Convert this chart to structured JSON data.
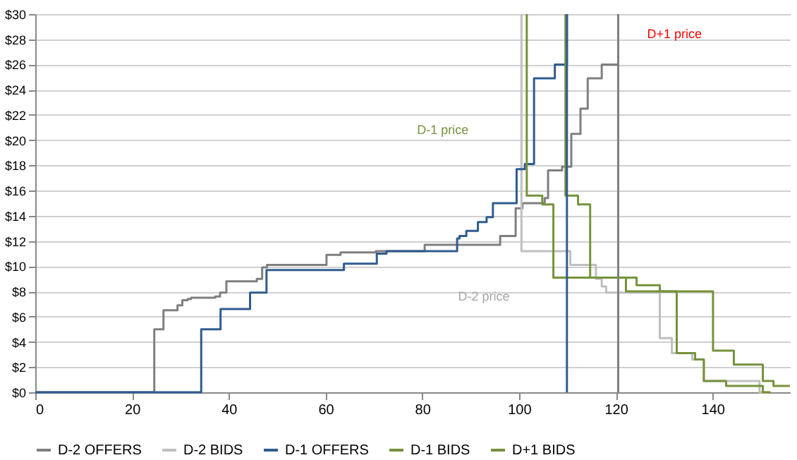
{
  "chart_data": {
    "type": "step",
    "xlim": [
      0,
      156
    ],
    "xticks": [
      0,
      20,
      40,
      60,
      80,
      100,
      120,
      140
    ],
    "ylim": [
      0,
      30
    ],
    "yticks": [
      {
        "value": 0,
        "label": "$0"
      },
      {
        "value": 2,
        "label": "$2"
      },
      {
        "value": 4,
        "label": "$4"
      },
      {
        "value": 6,
        "label": "$6"
      },
      {
        "value": 8,
        "label": "$8"
      },
      {
        "value": 10,
        "label": "$10"
      },
      {
        "value": 12,
        "label": "$12"
      },
      {
        "value": 14,
        "label": "$14"
      },
      {
        "value": 16,
        "label": "$16"
      },
      {
        "value": 18,
        "label": "$18"
      },
      {
        "value": 20,
        "label": "$20"
      },
      {
        "value": 22,
        "label": "$22"
      },
      {
        "value": 24,
        "label": "$24"
      },
      {
        "value": 26,
        "label": "$26"
      },
      {
        "value": 28,
        "label": "$28"
      },
      {
        "value": 30,
        "label": "$30"
      }
    ],
    "grid": "y",
    "legend": "bottom",
    "marker": "none",
    "line_style": "solid",
    "series": [
      {
        "name": "D-2 OFFERS",
        "color": "#7f7f7f",
        "x": [
          0,
          24.6,
          26.5,
          29.4,
          30.4,
          31.5,
          32.2,
          37.2,
          38.2,
          39.5,
          45.8,
          46.9,
          47.9,
          60.2,
          63.1,
          70.4,
          80.5,
          96.1,
          99.3,
          100.7,
          105.3,
          106,
          108.9,
          110.8,
          112.7,
          114.2,
          117.1,
          120.5
        ],
        "values": [
          0,
          5.0,
          6.5,
          6.9,
          7.3,
          7.4,
          7.5,
          7.6,
          7.9,
          8.8,
          9.0,
          9.9,
          10.1,
          10.9,
          11.1,
          11.2,
          11.7,
          12.4,
          14.6,
          15.0,
          15.4,
          17.6,
          17.9,
          20.5,
          22.5,
          24.9,
          26.0,
          30
        ]
      },
      {
        "name": "D-2 BIDS",
        "color": "#bfbfbf",
        "x": [
          100.5,
          100.5,
          110.6,
          115.9,
          117.1,
          118,
          129.1,
          131.6,
          135.8,
          138.2,
          149.7,
          151.6
        ],
        "values": [
          30,
          11.2,
          10.1,
          9.0,
          8.4,
          7.9,
          4.3,
          3.1,
          2.6,
          0.9,
          0,
          0
        ]
      },
      {
        "name": "D-1 OFFERS",
        "color": "#2f5c8f",
        "x": [
          0,
          34.3,
          38.3,
          44.4,
          47.8,
          63.8,
          70.6,
          72.6,
          87.2,
          87.7,
          89.1,
          91.5,
          93.3,
          94.6,
          99.5,
          101.2,
          103.1,
          107.4,
          109.9
        ],
        "values": [
          0,
          5.0,
          6.6,
          7.9,
          9.7,
          10.2,
          11.0,
          11.2,
          12.2,
          12.4,
          12.8,
          13.5,
          13.9,
          15.0,
          17.7,
          18.1,
          24.9,
          26.0,
          30
        ]
      },
      {
        "name": "D-1 BIDS",
        "color": "#76923c",
        "x": [
          101.6,
          101.6,
          104.8,
          107.1,
          122.1,
          132.6,
          136.4,
          138.2,
          142.8,
          150.4,
          152
        ],
        "values": [
          30,
          15.6,
          14.9,
          9.1,
          8.0,
          3.1,
          2.6,
          0.9,
          0.5,
          0,
          0
        ]
      },
      {
        "name": "D+1 BIDS",
        "color": "#76923c",
        "x": [
          109.6,
          109.6,
          112.2,
          114.7,
          124.3,
          129.1,
          140.1,
          144.4,
          150.4,
          152.6,
          156
        ],
        "values": [
          30,
          15.6,
          14.9,
          9.1,
          8.5,
          8.0,
          3.3,
          2.2,
          0.9,
          0.5,
          0.5
        ]
      }
    ],
    "ref_lines": [
      {
        "axis": "x",
        "value": 109.9,
        "color": "#2f5c8f"
      },
      {
        "axis": "x",
        "value": 120.5,
        "color": "#7f7f7f"
      }
    ],
    "annotations": [
      "D+1 price",
      "D-1 price",
      "D-2 price"
    ]
  }
}
